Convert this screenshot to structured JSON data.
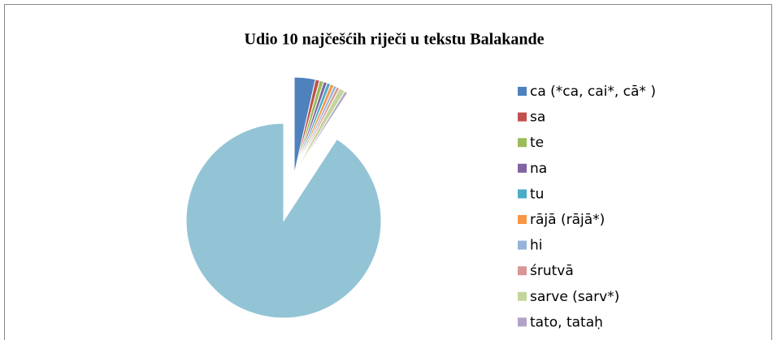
{
  "chart_data": {
    "type": "pie",
    "title": "Udio 10 najčešćih riječi u tekstu Balakande",
    "categories": [
      "ca (*ca, cai*, cā* )",
      "sa",
      "te",
      "na",
      "tu",
      "rājā (rājā*)",
      "hi",
      "śrutvā",
      "sarve (sarv*)",
      "tato, tataḥ",
      null
    ],
    "values": [
      3.5,
      0.7,
      0.7,
      0.6,
      0.6,
      0.6,
      0.5,
      0.5,
      1.0,
      0.5,
      90.8
    ],
    "colors": [
      "#4f81bd",
      "#c0504d",
      "#9bbb59",
      "#8064a2",
      "#4bacc6",
      "#f79646",
      "#95b3d7",
      "#d99694",
      "#c3d69b",
      "#b3a2c7",
      "#93c4d6"
    ],
    "legend": "right"
  }
}
